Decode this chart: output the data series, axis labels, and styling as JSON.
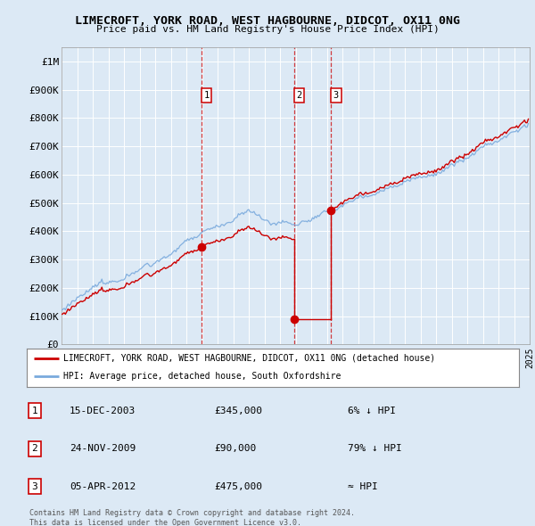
{
  "title": "LIMECROFT, YORK ROAD, WEST HAGBOURNE, DIDCOT, OX11 0NG",
  "subtitle": "Price paid vs. HM Land Registry's House Price Index (HPI)",
  "background_color": "#dce9f5",
  "plot_bg_color": "#dce9f5",
  "grid_color": "#ffffff",
  "x_start_year": 1995,
  "x_end_year": 2025,
  "ylim": [
    0,
    1050000
  ],
  "yticks": [
    0,
    100000,
    200000,
    300000,
    400000,
    500000,
    600000,
    700000,
    800000,
    900000,
    1000000
  ],
  "ytick_labels": [
    "£0",
    "£100K",
    "£200K",
    "£300K",
    "£400K",
    "£500K",
    "£600K",
    "£700K",
    "£800K",
    "£900K",
    "£1M"
  ],
  "hpi_color": "#7aaadd",
  "price_color": "#cc0000",
  "sale_dates": [
    "2003-12-15",
    "2009-11-24",
    "2012-04-05"
  ],
  "sale_prices": [
    345000,
    90000,
    475000
  ],
  "sale_labels": [
    "1",
    "2",
    "3"
  ],
  "dashed_line_color": "#cc0000",
  "legend_label_price": "LIMECROFT, YORK ROAD, WEST HAGBOURNE, DIDCOT, OX11 0NG (detached house)",
  "legend_label_hpi": "HPI: Average price, detached house, South Oxfordshire",
  "table_rows": [
    {
      "num": "1",
      "date": "15-DEC-2003",
      "price": "£345,000",
      "hpi": "6% ↓ HPI"
    },
    {
      "num": "2",
      "date": "24-NOV-2009",
      "price": "£90,000",
      "hpi": "79% ↓ HPI"
    },
    {
      "num": "3",
      "date": "05-APR-2012",
      "price": "£475,000",
      "hpi": "≈ HPI"
    }
  ],
  "footnote1": "Contains HM Land Registry data © Crown copyright and database right 2024.",
  "footnote2": "This data is licensed under the Open Government Licence v3.0."
}
